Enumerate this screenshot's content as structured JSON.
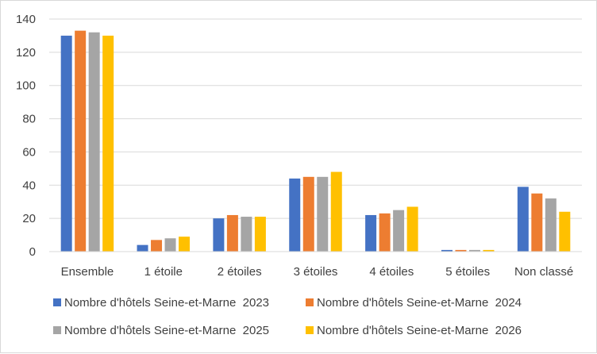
{
  "chart_data": {
    "type": "bar",
    "title": "",
    "xlabel": "",
    "ylabel": "",
    "categories": [
      "Ensemble",
      "1 étoile",
      "2 étoiles",
      "3 étoiles",
      "4 étoiles",
      "5 étoiles",
      "Non classé"
    ],
    "ylim": [
      0,
      140
    ],
    "yticks": [
      0,
      20,
      40,
      60,
      80,
      100,
      120,
      140
    ],
    "grid": true,
    "legend_position": "bottom",
    "series": [
      {
        "name": "Nombre d'hôtels Seine-et-Marne  2023",
        "color": "#4472c4",
        "values": [
          130,
          4,
          20,
          44,
          22,
          1,
          39
        ]
      },
      {
        "name": "Nombre d'hôtels Seine-et-Marne  2024",
        "color": "#ed7d31",
        "values": [
          133,
          7,
          22,
          45,
          23,
          1,
          35
        ]
      },
      {
        "name": "Nombre d'hôtels Seine-et-Marne  2025",
        "color": "#a5a5a5",
        "values": [
          132,
          8,
          21,
          45,
          25,
          1,
          32
        ]
      },
      {
        "name": "Nombre d'hôtels Seine-et-Marne  2026",
        "color": "#ffc000",
        "values": [
          130,
          9,
          21,
          48,
          27,
          1,
          24
        ]
      }
    ]
  }
}
